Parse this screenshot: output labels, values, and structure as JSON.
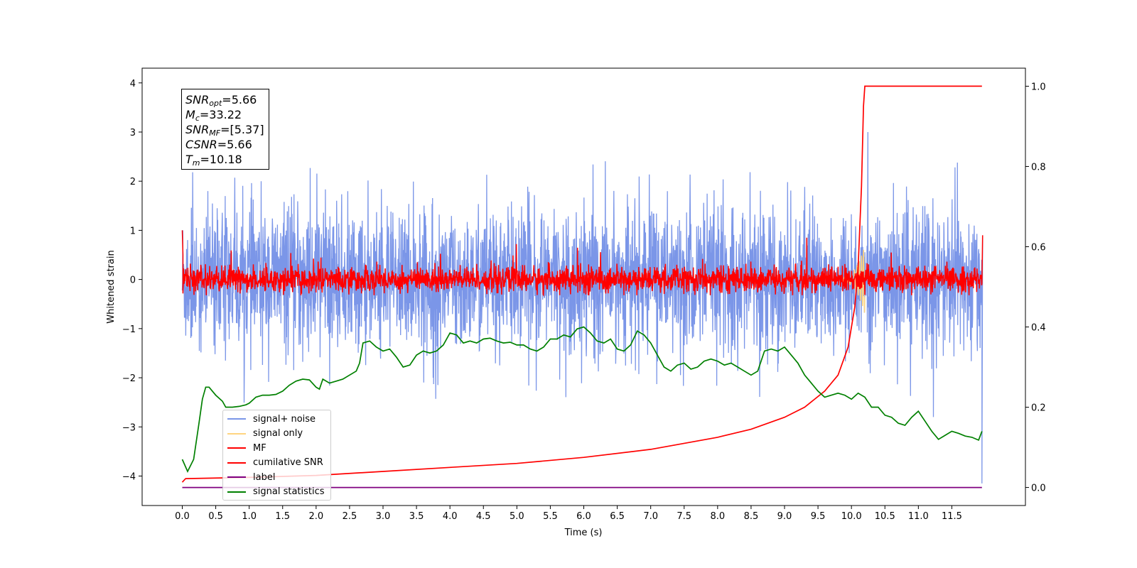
{
  "chart_data": {
    "type": "line",
    "xlabel": "Time (s)",
    "ylabel": "Whitened strain",
    "xlim": [
      -0.6,
      12.6
    ],
    "ylim": [
      -4.6,
      4.3
    ],
    "ylim_right": [
      -0.045,
      1.045
    ],
    "xticks": [
      "0.0",
      "0.5",
      "1.0",
      "1.5",
      "2.0",
      "2.5",
      "3.0",
      "3.5",
      "4.0",
      "4.5",
      "5.0",
      "5.5",
      "6.0",
      "6.5",
      "7.0",
      "7.5",
      "8.0",
      "8.5",
      "9.0",
      "9.5",
      "10.0",
      "10.5",
      "11.0",
      "11.5"
    ],
    "yticks_left": [
      "−4",
      "−3",
      "−2",
      "−1",
      "0",
      "1",
      "2",
      "3",
      "4"
    ],
    "yticks_right": [
      "0.0",
      "0.2",
      "0.4",
      "0.6",
      "0.8",
      "1.0"
    ],
    "legend_position": "lower left",
    "series": [
      {
        "name": "signal+ noise",
        "color": "#7b96e8",
        "axis": "left",
        "description": "noise band roughly between -2.5 and 2.5, center about 0"
      },
      {
        "name": "signal only",
        "color": "#ffd580",
        "axis": "left"
      },
      {
        "name": "MF",
        "color": "#ff0000",
        "axis": "left",
        "description": "band roughly between -0.3 and 0.3"
      },
      {
        "name": "cumilative SNR",
        "color": "#ff0000",
        "axis": "right",
        "x": [
          0.0,
          0.05,
          1.0,
          2.0,
          3.0,
          4.0,
          5.0,
          6.0,
          7.0,
          7.5,
          8.0,
          8.5,
          9.0,
          9.3,
          9.6,
          9.8,
          9.95,
          10.05,
          10.1,
          10.15,
          10.18,
          10.2,
          11.95
        ],
        "y": [
          0.013,
          0.022,
          0.025,
          0.03,
          0.04,
          0.05,
          0.06,
          0.075,
          0.095,
          0.11,
          0.125,
          0.145,
          0.175,
          0.2,
          0.24,
          0.28,
          0.35,
          0.45,
          0.55,
          0.75,
          0.95,
          1.0,
          1.0
        ]
      },
      {
        "name": "label",
        "color": "#800080",
        "axis": "right",
        "x": [
          0.0,
          11.95
        ],
        "y": [
          0.0,
          0.0
        ]
      },
      {
        "name": "signal statistics",
        "color": "#008000",
        "axis": "right",
        "x": [
          0.0,
          0.08,
          0.17,
          0.25,
          0.3,
          0.35,
          0.4,
          0.5,
          0.6,
          0.65,
          0.75,
          0.85,
          0.95,
          1.0,
          1.1,
          1.2,
          1.3,
          1.4,
          1.5,
          1.6,
          1.7,
          1.8,
          1.9,
          2.0,
          2.05,
          2.1,
          2.2,
          2.3,
          2.4,
          2.5,
          2.6,
          2.65,
          2.7,
          2.8,
          2.9,
          3.0,
          3.1,
          3.2,
          3.3,
          3.4,
          3.5,
          3.6,
          3.7,
          3.8,
          3.9,
          4.0,
          4.1,
          4.2,
          4.3,
          4.4,
          4.5,
          4.6,
          4.7,
          4.8,
          4.9,
          5.0,
          5.1,
          5.2,
          5.3,
          5.4,
          5.5,
          5.6,
          5.7,
          5.8,
          5.9,
          6.0,
          6.1,
          6.2,
          6.3,
          6.4,
          6.5,
          6.6,
          6.7,
          6.8,
          6.9,
          7.0,
          7.1,
          7.2,
          7.3,
          7.4,
          7.5,
          7.6,
          7.7,
          7.8,
          7.9,
          8.0,
          8.1,
          8.2,
          8.3,
          8.4,
          8.5,
          8.6,
          8.7,
          8.8,
          8.9,
          9.0,
          9.1,
          9.2,
          9.3,
          9.4,
          9.5,
          9.6,
          9.7,
          9.8,
          9.9,
          10.0,
          10.1,
          10.2,
          10.3,
          10.4,
          10.5,
          10.6,
          10.7,
          10.8,
          10.9,
          11.0,
          11.1,
          11.2,
          11.3,
          11.4,
          11.5,
          11.6,
          11.7,
          11.8,
          11.9,
          11.95
        ],
        "y": [
          0.07,
          0.04,
          0.07,
          0.16,
          0.22,
          0.25,
          0.25,
          0.23,
          0.215,
          0.2,
          0.2,
          0.202,
          0.206,
          0.21,
          0.225,
          0.23,
          0.23,
          0.232,
          0.24,
          0.255,
          0.265,
          0.27,
          0.268,
          0.25,
          0.245,
          0.27,
          0.26,
          0.265,
          0.27,
          0.28,
          0.29,
          0.31,
          0.36,
          0.365,
          0.35,
          0.34,
          0.345,
          0.325,
          0.3,
          0.305,
          0.33,
          0.34,
          0.335,
          0.34,
          0.355,
          0.385,
          0.38,
          0.36,
          0.365,
          0.36,
          0.37,
          0.372,
          0.365,
          0.36,
          0.362,
          0.355,
          0.355,
          0.345,
          0.34,
          0.35,
          0.37,
          0.37,
          0.38,
          0.375,
          0.395,
          0.4,
          0.385,
          0.365,
          0.36,
          0.37,
          0.345,
          0.34,
          0.355,
          0.39,
          0.38,
          0.36,
          0.33,
          0.3,
          0.29,
          0.305,
          0.31,
          0.295,
          0.3,
          0.315,
          0.32,
          0.315,
          0.305,
          0.31,
          0.3,
          0.29,
          0.28,
          0.29,
          0.34,
          0.345,
          0.34,
          0.35,
          0.33,
          0.31,
          0.28,
          0.26,
          0.24,
          0.225,
          0.23,
          0.235,
          0.23,
          0.22,
          0.235,
          0.225,
          0.2,
          0.2,
          0.18,
          0.175,
          0.16,
          0.155,
          0.175,
          0.19,
          0.165,
          0.14,
          0.12,
          0.13,
          0.14,
          0.135,
          0.128,
          0.125,
          0.118,
          0.14
        ]
      }
    ]
  },
  "infobox": {
    "snr_opt_label": "SNR",
    "snr_opt_sub": "opt",
    "snr_opt_value": "=5.66",
    "mc_label": "M",
    "mc_sub": "c",
    "mc_value": "=33.22",
    "snr_mf_label": "SNR",
    "snr_mf_sub": "MF",
    "snr_mf_value": "=[5.37]",
    "csnr_label": "CSNR",
    "csnr_value": "=5.66",
    "tm_label": "T",
    "tm_sub": "m",
    "tm_value": "=10.18"
  }
}
